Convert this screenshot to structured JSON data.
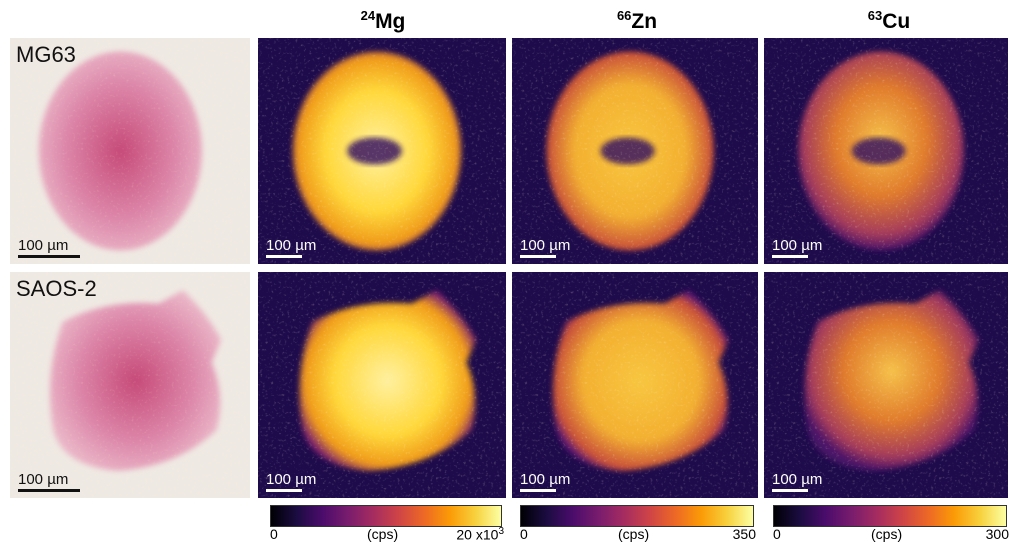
{
  "columns": [
    {
      "mass": "24",
      "element": "Mg",
      "colorbar": {
        "min": 0,
        "unit": "(cps)",
        "max": "20 x10",
        "max_exponent": "3"
      }
    },
    {
      "mass": "66",
      "element": "Zn",
      "colorbar": {
        "min": 0,
        "unit": "(cps)",
        "max": 350
      }
    },
    {
      "mass": "63",
      "element": "Cu",
      "colorbar": {
        "min": 0,
        "unit": "(cps)",
        "max": 300
      }
    }
  ],
  "rows": [
    {
      "label": "MG63",
      "scale_bars": [
        "100 µm",
        "100 µm",
        "100 µm",
        "100 µm"
      ]
    },
    {
      "label": "SAOS-2",
      "scale_bars": [
        "100 µm",
        "100 µm",
        "100 µm",
        "100 µm"
      ]
    }
  ]
}
